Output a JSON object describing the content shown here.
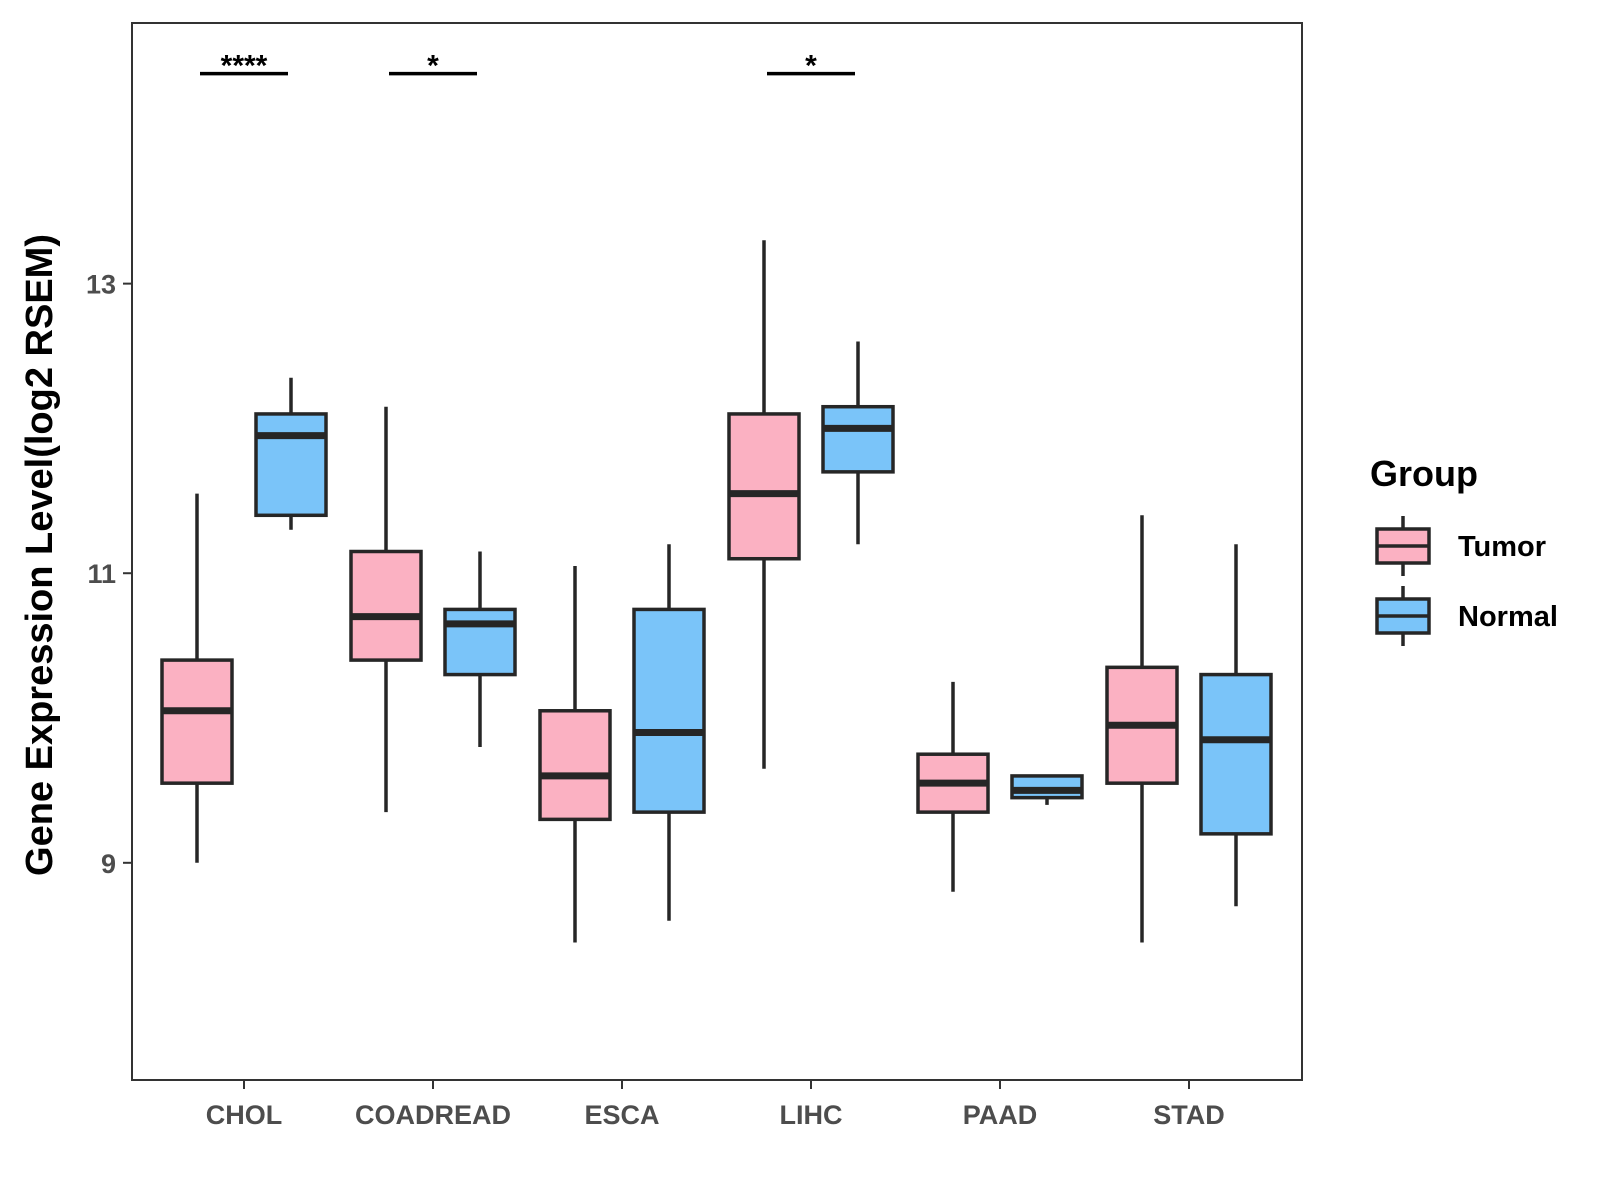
{
  "chart_data": {
    "type": "boxplot",
    "title": "",
    "xlabel": "",
    "ylabel": "Gene Expression Level(log2 RSEM)",
    "ylim": [
      7.5,
      14.8
    ],
    "yticks": [
      9,
      11,
      13
    ],
    "y_tick_labels": [
      "9",
      "11",
      "13"
    ],
    "categories": [
      "CHOL",
      "COADREAD",
      "ESCA",
      "LIHC",
      "PAAD",
      "STAD"
    ],
    "legend": {
      "title": "Group",
      "position": "right",
      "entries": [
        "Tumor",
        "Normal"
      ]
    },
    "series": [
      {
        "name": "Tumor",
        "color": "#FBB1C2",
        "boxes": [
          {
            "min": 9.0,
            "q1": 9.55,
            "median": 10.05,
            "q3": 10.4,
            "max": 11.55
          },
          {
            "min": 9.35,
            "q1": 10.4,
            "median": 10.7,
            "q3": 11.15,
            "max": 12.15
          },
          {
            "min": 8.45,
            "q1": 9.3,
            "median": 9.6,
            "q3": 10.05,
            "max": 11.05
          },
          {
            "min": 9.65,
            "q1": 11.1,
            "median": 11.55,
            "q3": 12.1,
            "max": 13.3
          },
          {
            "min": 8.8,
            "q1": 9.35,
            "median": 9.55,
            "q3": 9.75,
            "max": 10.25
          },
          {
            "min": 8.45,
            "q1": 9.55,
            "median": 9.95,
            "q3": 10.35,
            "max": 11.4
          }
        ]
      },
      {
        "name": "Normal",
        "color": "#7AC4F9",
        "boxes": [
          {
            "min": 11.3,
            "q1": 11.4,
            "median": 11.95,
            "q3": 12.1,
            "max": 12.35
          },
          {
            "min": 9.8,
            "q1": 10.3,
            "median": 10.65,
            "q3": 10.75,
            "max": 11.15
          },
          {
            "min": 8.6,
            "q1": 9.35,
            "median": 9.9,
            "q3": 10.75,
            "max": 11.2
          },
          {
            "min": 11.2,
            "q1": 11.7,
            "median": 12.0,
            "q3": 12.15,
            "max": 12.6
          },
          {
            "min": 9.4,
            "q1": 9.45,
            "median": 9.5,
            "q3": 9.6,
            "max": 9.6
          },
          {
            "min": 8.7,
            "q1": 9.2,
            "median": 9.85,
            "q3": 10.3,
            "max": 11.2
          }
        ]
      }
    ],
    "significance": [
      {
        "category": "CHOL",
        "label": "****",
        "y": 14.45
      },
      {
        "category": "COADREAD",
        "label": "*",
        "y": 14.45
      },
      {
        "category": "LIHC",
        "label": "*",
        "y": 14.45
      }
    ],
    "grid": false
  }
}
